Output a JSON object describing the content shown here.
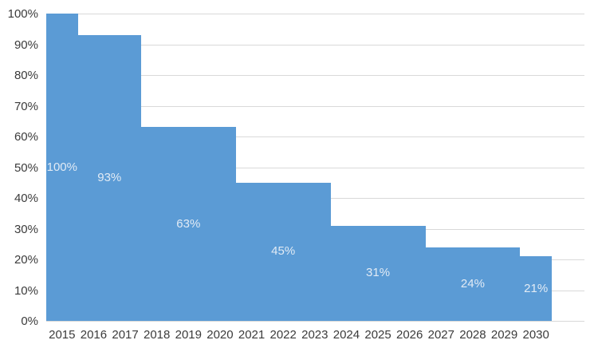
{
  "chart_data": {
    "type": "area",
    "subtype": "stepped-area",
    "title": "",
    "xlabel": "",
    "ylabel": "",
    "x": [
      2015,
      2016,
      2017,
      2018,
      2019,
      2020,
      2021,
      2022,
      2023,
      2024,
      2025,
      2026,
      2027,
      2028,
      2029,
      2030
    ],
    "values_by_year": [
      100,
      93,
      93,
      63,
      63,
      63,
      45,
      45,
      45,
      31,
      31,
      31,
      24,
      24,
      24,
      21
    ],
    "steps": [
      {
        "label": "100%",
        "value": 100,
        "from": 2015,
        "to": 2015
      },
      {
        "label": "93%",
        "value": 93,
        "from": 2016,
        "to": 2017
      },
      {
        "label": "63%",
        "value": 63,
        "from": 2018,
        "to": 2020
      },
      {
        "label": "45%",
        "value": 45,
        "from": 2021,
        "to": 2023
      },
      {
        "label": "31%",
        "value": 31,
        "from": 2024,
        "to": 2026
      },
      {
        "label": "24%",
        "value": 24,
        "from": 2027,
        "to": 2029
      },
      {
        "label": "21%",
        "value": 21,
        "from": 2030,
        "to": 2030
      }
    ],
    "y_ticks": [
      "0%",
      "10%",
      "20%",
      "30%",
      "40%",
      "50%",
      "60%",
      "70%",
      "80%",
      "90%",
      "100%"
    ],
    "ylim": [
      0,
      100
    ],
    "grid": true,
    "legend": false,
    "colors": {
      "area": "#5b9bd5",
      "data_label_text": "#e2ebf5",
      "axis_text": "#3b3b3b",
      "gridline": "#d9d9d9",
      "background": "#ffffff"
    }
  }
}
